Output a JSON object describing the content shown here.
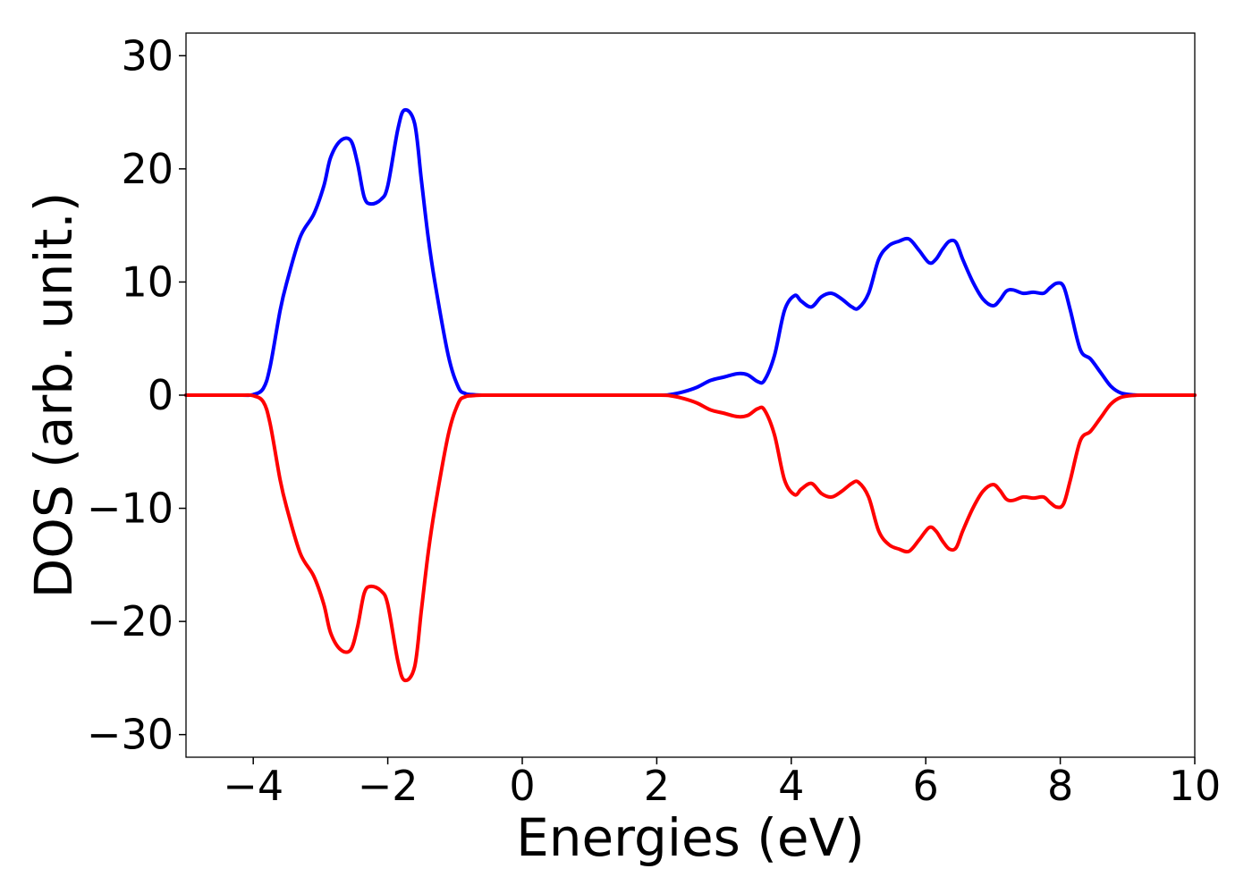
{
  "chart_data": {
    "type": "line",
    "title": "",
    "xlabel": "Energies (eV)",
    "ylabel": "DOS (arb. unit.)",
    "xlim": [
      -5,
      10
    ],
    "ylim": [
      -32,
      32
    ],
    "xticks": [
      -4,
      -2,
      0,
      2,
      4,
      6,
      8,
      10
    ],
    "xtick_labels": [
      "−4",
      "−2",
      "0",
      "2",
      "4",
      "6",
      "8",
      "10"
    ],
    "yticks": [
      30,
      20,
      10,
      0,
      -10,
      -20,
      -30
    ],
    "ytick_labels": [
      "30",
      "20",
      "10",
      "0",
      "−10",
      "−20",
      "−30"
    ],
    "grid": false,
    "legend": "none",
    "colors": {
      "spin_up": "#0000ff",
      "spin_down": "#ff0000"
    },
    "series": [
      {
        "color": "#0000ff",
        "x": [
          -5.0,
          -4.2,
          -4.0,
          -3.85,
          -3.75,
          -3.6,
          -3.5,
          -3.3,
          -3.1,
          -2.95,
          -2.85,
          -2.7,
          -2.55,
          -2.45,
          -2.35,
          -2.25,
          -2.1,
          -2.0,
          -1.85,
          -1.75,
          -1.6,
          -1.5,
          -1.4,
          -1.3,
          -1.1,
          -0.95,
          -0.85,
          -0.75,
          -0.6,
          -0.5,
          0.0,
          1.0,
          2.0,
          2.2,
          2.4,
          2.6,
          2.8,
          3.0,
          3.2,
          3.35,
          3.5,
          3.6,
          3.75,
          3.9,
          4.05,
          4.15,
          4.3,
          4.45,
          4.6,
          4.75,
          4.9,
          5.0,
          5.15,
          5.3,
          5.45,
          5.6,
          5.75,
          5.9,
          6.05,
          6.15,
          6.25,
          6.35,
          6.45,
          6.55,
          6.7,
          6.85,
          7.0,
          7.1,
          7.2,
          7.3,
          7.45,
          7.6,
          7.75,
          7.85,
          7.95,
          8.05,
          8.15,
          8.3,
          8.45,
          8.6,
          8.75,
          8.9,
          9.1,
          9.3,
          10.0
        ],
        "y": [
          0.0,
          0.0,
          0.05,
          0.6,
          2.5,
          7.5,
          10.0,
          14.0,
          16.0,
          18.5,
          21.0,
          22.5,
          22.5,
          20.5,
          17.5,
          16.9,
          17.3,
          18.5,
          23.5,
          25.2,
          24.0,
          19.0,
          14.0,
          10.0,
          3.5,
          0.7,
          0.15,
          0.05,
          0.0,
          0.0,
          0.0,
          0.0,
          0.0,
          0.05,
          0.3,
          0.7,
          1.3,
          1.6,
          1.9,
          1.8,
          1.2,
          1.3,
          3.5,
          7.5,
          8.8,
          8.3,
          7.8,
          8.7,
          9.0,
          8.5,
          7.8,
          7.7,
          9.0,
          12.0,
          13.2,
          13.6,
          13.8,
          12.8,
          11.7,
          12.0,
          12.9,
          13.6,
          13.5,
          12.0,
          10.0,
          8.5,
          7.9,
          8.4,
          9.2,
          9.3,
          9.0,
          9.1,
          9.0,
          9.5,
          9.9,
          9.6,
          7.5,
          4.0,
          3.2,
          2.0,
          0.8,
          0.2,
          0.02,
          0.0,
          0.0
        ]
      },
      {
        "color": "#ff0000",
        "x": [
          -5.0,
          -4.2,
          -4.0,
          -3.85,
          -3.75,
          -3.6,
          -3.5,
          -3.3,
          -3.1,
          -2.95,
          -2.85,
          -2.7,
          -2.55,
          -2.45,
          -2.35,
          -2.25,
          -2.1,
          -2.0,
          -1.85,
          -1.75,
          -1.6,
          -1.5,
          -1.4,
          -1.3,
          -1.1,
          -0.95,
          -0.85,
          -0.75,
          -0.6,
          -0.5,
          0.0,
          1.0,
          2.0,
          2.2,
          2.4,
          2.6,
          2.8,
          3.0,
          3.2,
          3.35,
          3.5,
          3.6,
          3.75,
          3.9,
          4.05,
          4.15,
          4.3,
          4.45,
          4.6,
          4.75,
          4.9,
          5.0,
          5.15,
          5.3,
          5.45,
          5.6,
          5.75,
          5.9,
          6.05,
          6.15,
          6.25,
          6.35,
          6.45,
          6.55,
          6.7,
          6.85,
          7.0,
          7.1,
          7.2,
          7.3,
          7.45,
          7.6,
          7.75,
          7.85,
          7.95,
          8.05,
          8.15,
          8.3,
          8.45,
          8.6,
          8.75,
          8.9,
          9.1,
          9.3,
          10.0
        ],
        "y": [
          0.0,
          0.0,
          -0.05,
          -0.6,
          -2.5,
          -7.5,
          -10.0,
          -14.0,
          -16.0,
          -18.5,
          -21.0,
          -22.5,
          -22.5,
          -20.5,
          -17.5,
          -16.9,
          -17.3,
          -18.5,
          -23.5,
          -25.2,
          -24.0,
          -19.0,
          -14.0,
          -10.0,
          -3.5,
          -0.7,
          -0.15,
          -0.05,
          0.0,
          0.0,
          0.0,
          0.0,
          0.0,
          -0.05,
          -0.3,
          -0.7,
          -1.3,
          -1.6,
          -1.9,
          -1.8,
          -1.2,
          -1.3,
          -3.5,
          -7.5,
          -8.8,
          -8.3,
          -7.8,
          -8.7,
          -9.0,
          -8.5,
          -7.8,
          -7.7,
          -9.0,
          -12.0,
          -13.2,
          -13.6,
          -13.8,
          -12.8,
          -11.7,
          -12.0,
          -12.9,
          -13.6,
          -13.5,
          -12.0,
          -10.0,
          -8.5,
          -7.9,
          -8.4,
          -9.2,
          -9.3,
          -9.0,
          -9.1,
          -9.0,
          -9.5,
          -9.9,
          -9.6,
          -7.5,
          -4.0,
          -3.2,
          -2.0,
          -0.8,
          -0.2,
          -0.02,
          0.0,
          0.0
        ]
      }
    ]
  }
}
